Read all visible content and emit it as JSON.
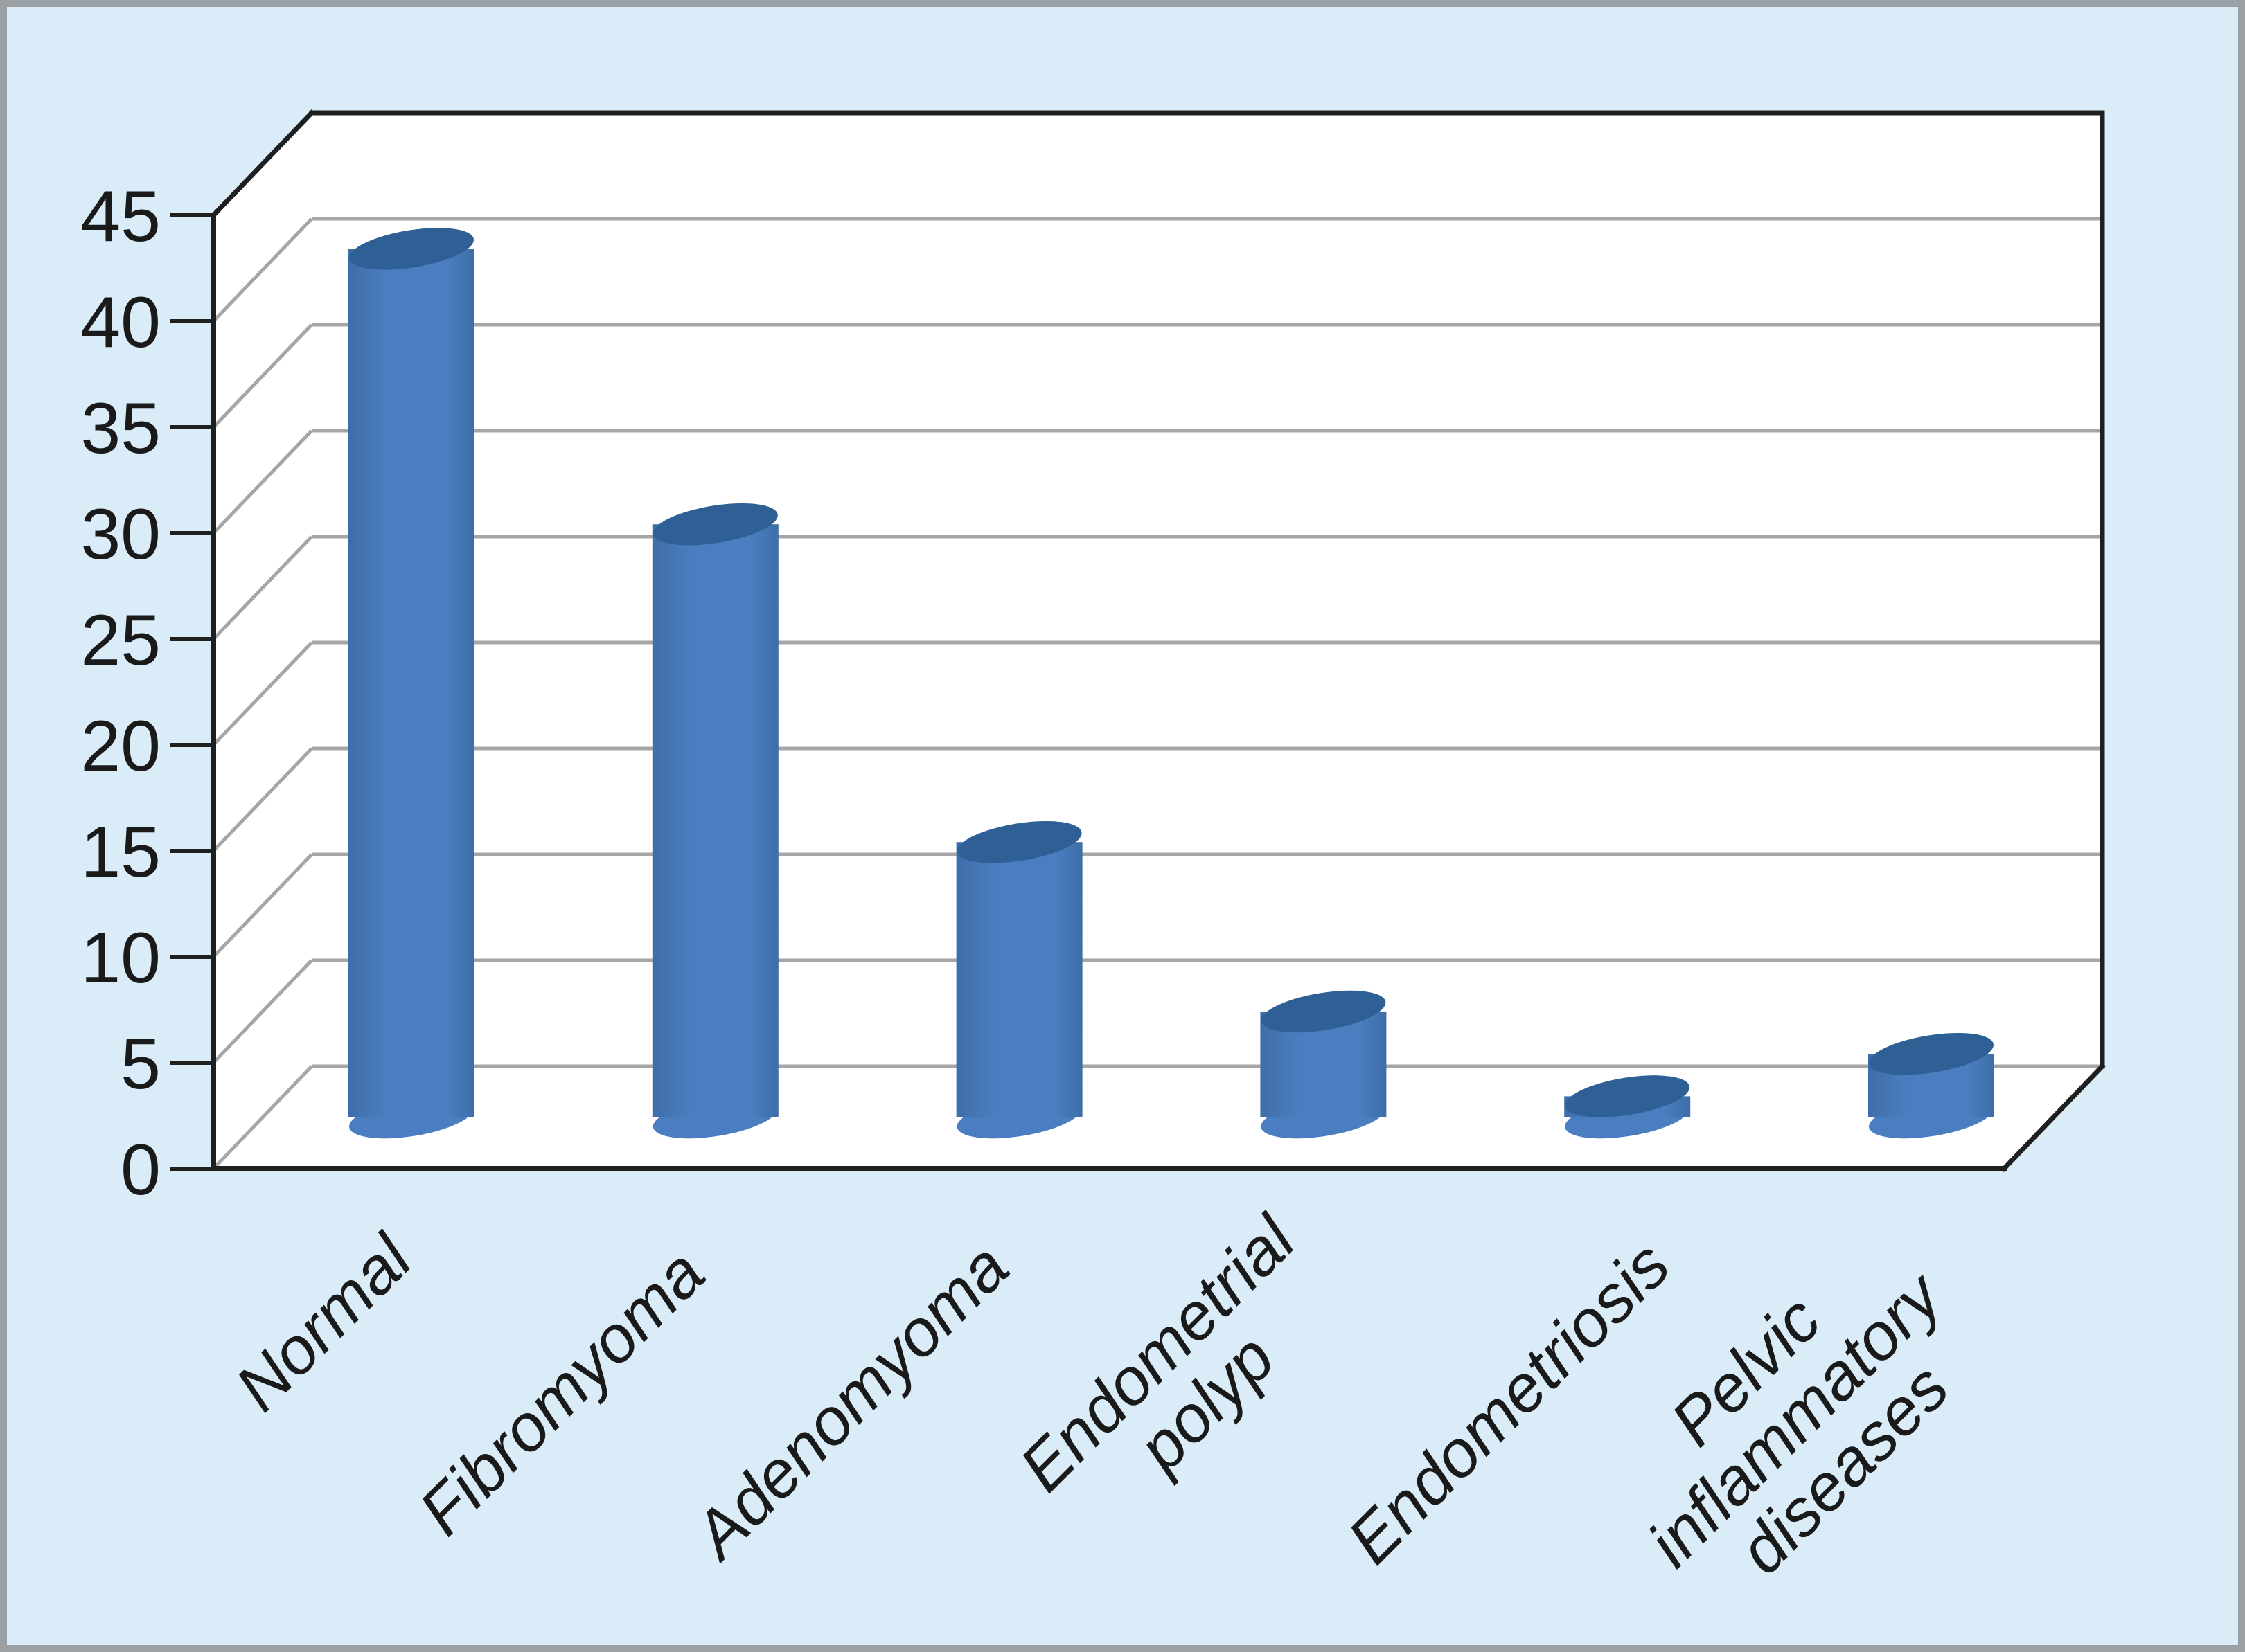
{
  "chart_data": {
    "type": "bar",
    "style": "3d-cylinder-column-chart",
    "title": "",
    "xlabel": "",
    "ylabel": "",
    "categories": [
      "Normal",
      "Fibromyoma",
      "Adenomyoma",
      "Endometrial polyp",
      "Endometriosis",
      "Pelvic inflammatory diseases"
    ],
    "values": [
      41,
      28,
      13,
      5,
      1,
      3
    ],
    "ylim": [
      0,
      45
    ],
    "ytick_step": 5,
    "yticks": [
      0,
      5,
      10,
      15,
      20,
      25,
      30,
      35,
      40,
      45
    ],
    "grid": true,
    "legend": false,
    "colors": {
      "cylinder_side": "#4A7EC0",
      "cylinder_side_shade": "#3E6EA9",
      "cylinder_top": "#2E6095",
      "background": "#D9ECF7",
      "plot_walls": "#FFFFFF",
      "gridline": "#A6A6A6",
      "axis_line": "#1F1F1F",
      "text": "#1A1A1A",
      "page_border": "#9BA0A5"
    }
  }
}
